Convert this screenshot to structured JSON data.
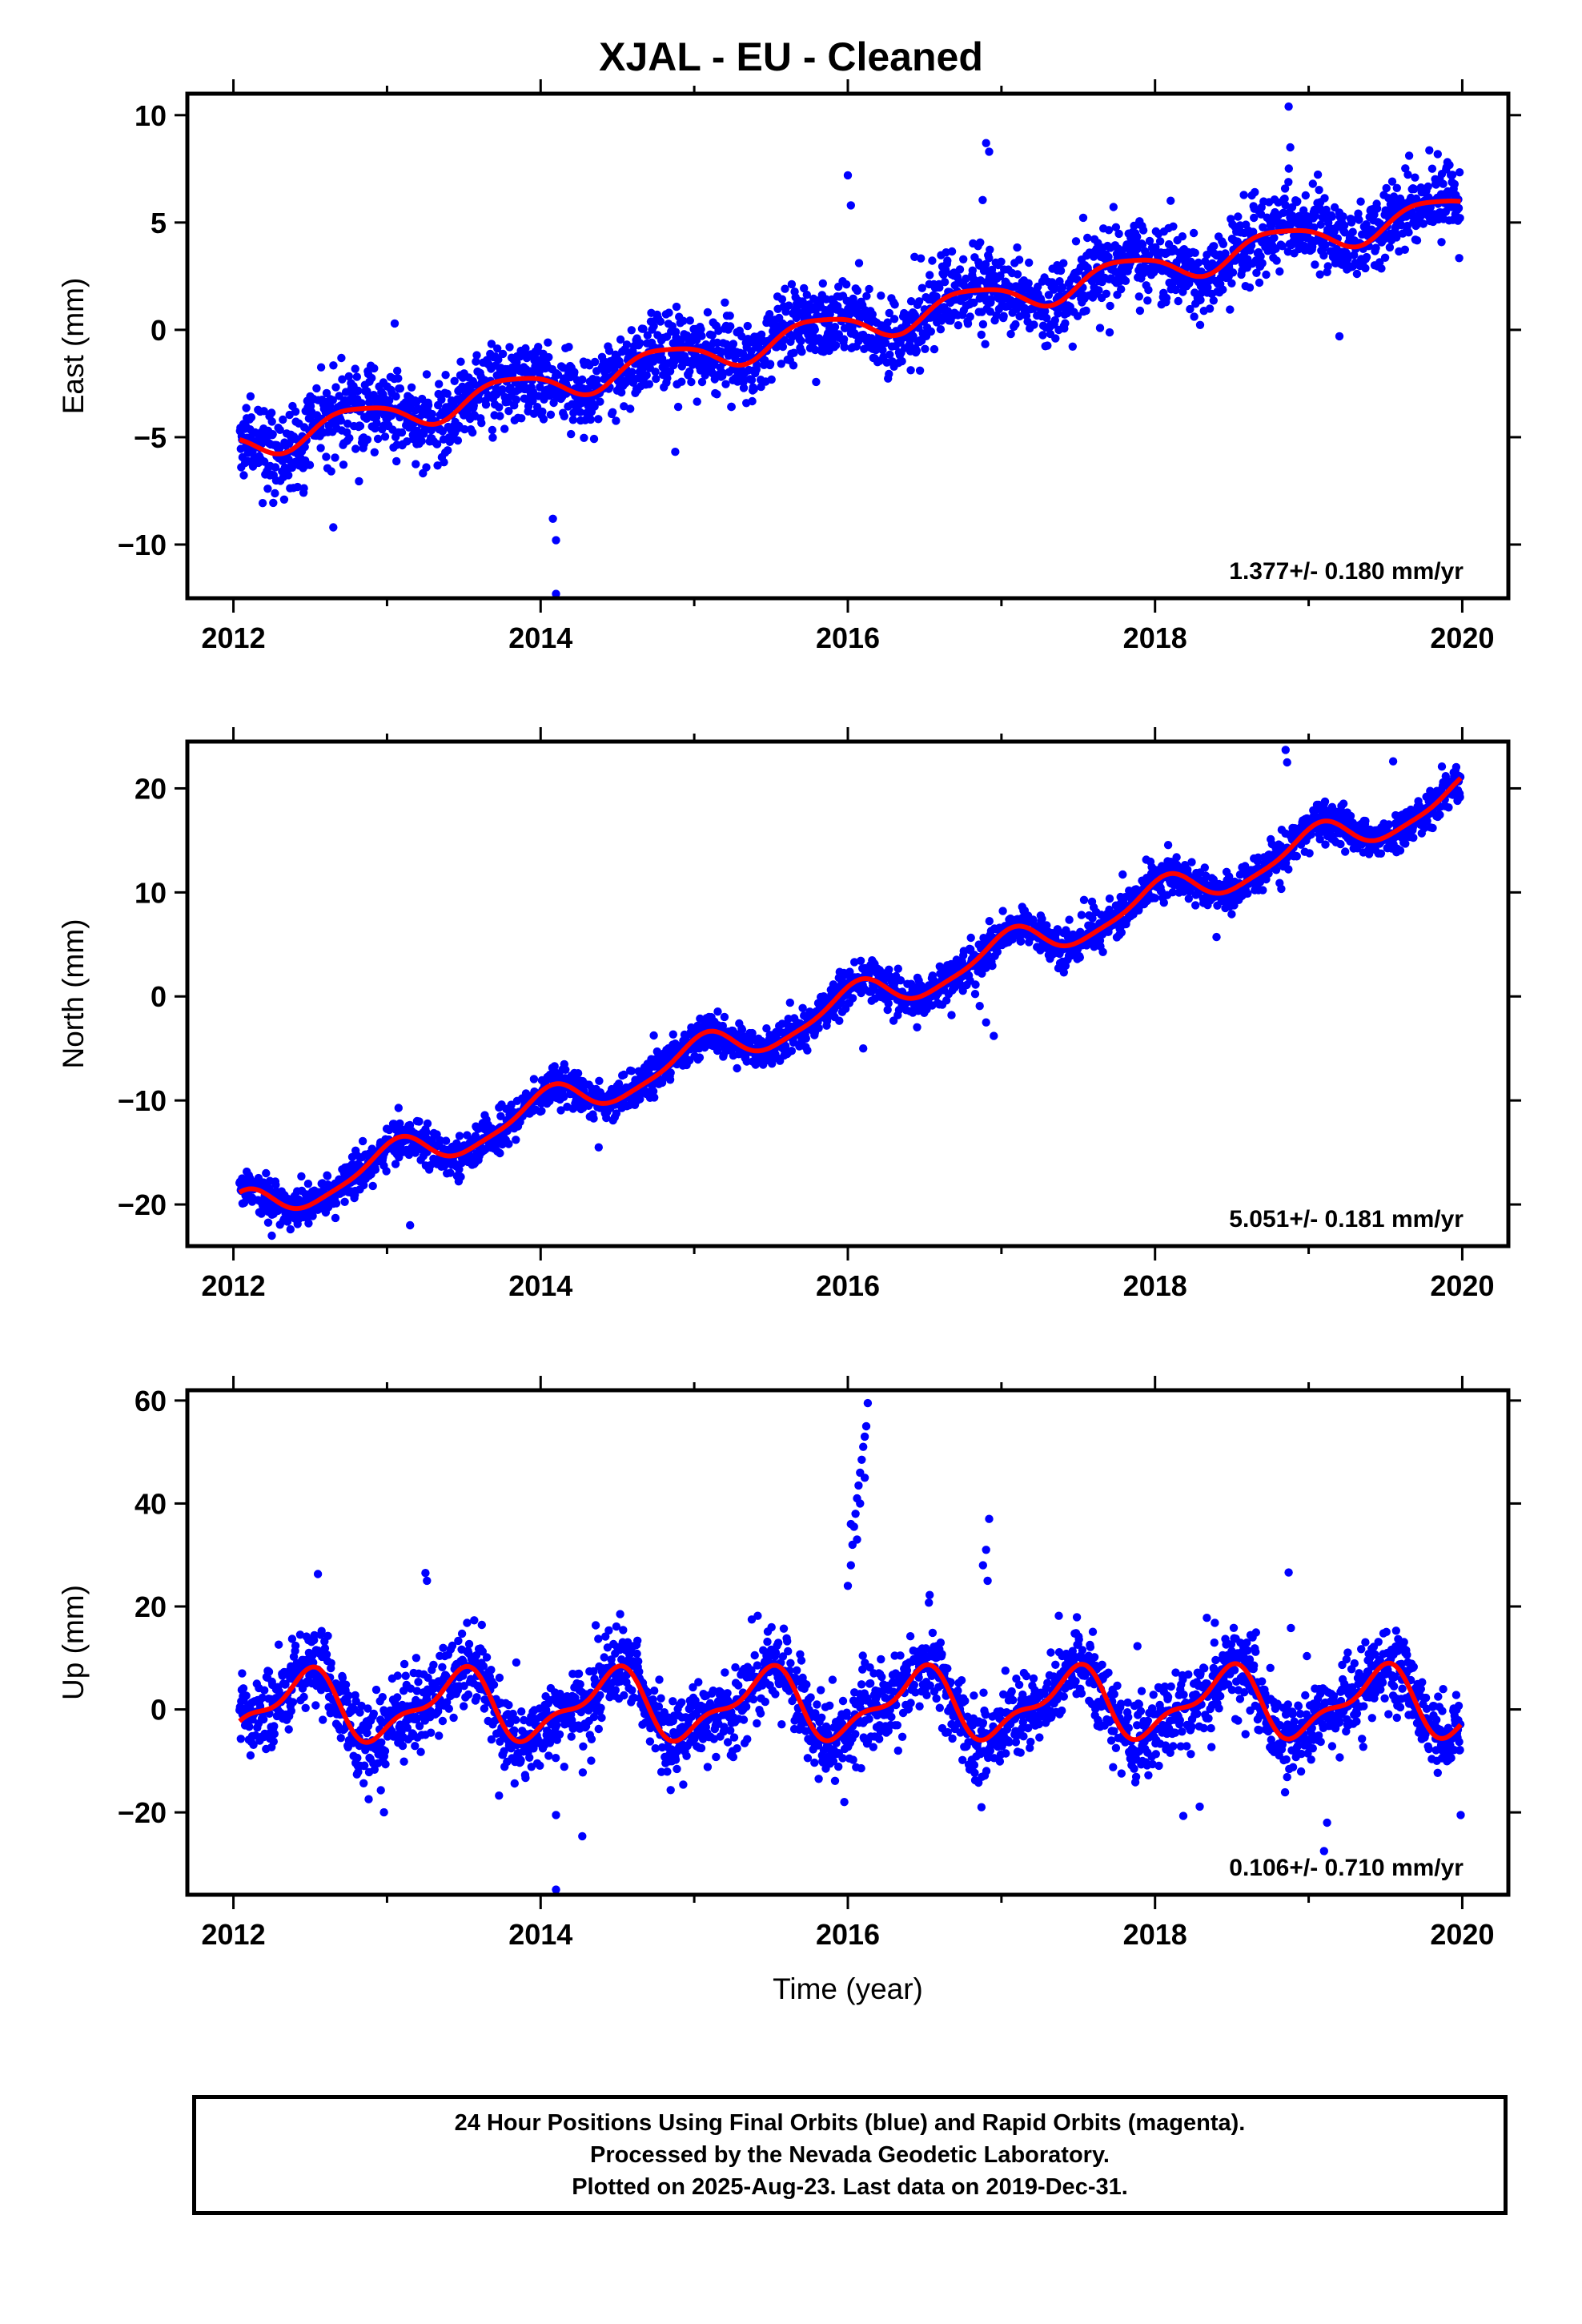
{
  "title": "XJAL  - EU - Cleaned",
  "x_axis_label": "Time (year)",
  "footer": {
    "line1": "24 Hour Positions Using Final Orbits (blue) and Rapid Orbits (magenta).",
    "line2": "Processed by the Nevada Geodetic Laboratory.",
    "line3": "Plotted on 2025-Aug-23. Last data on 2019-Dec-31."
  },
  "colors": {
    "points": "#0000ff",
    "model": "#ff0000",
    "frame": "#000000"
  },
  "chart_data": [
    {
      "type": "scatter",
      "ylabel": "East (mm)",
      "rate": "1.377+/- 0.180 mm/yr",
      "xlim": [
        2011.7,
        2020.3
      ],
      "ylim": [
        -12.5,
        11
      ],
      "xticks": [
        2012,
        2014,
        2016,
        2018,
        2020
      ],
      "yticks": [
        -10,
        -5,
        0,
        5,
        10
      ],
      "ytick_labels": [
        "−10",
        "−5",
        "0",
        "5",
        "10"
      ],
      "data_span": [
        2012.04,
        2019.99
      ],
      "trend": {
        "slope": 1.377,
        "intercept": -5.3,
        "t0": 2012.04
      },
      "seasonal": {
        "annual_amp": 0.7,
        "annual_phase": 2.8,
        "semiannual_amp": 0.15,
        "semiannual_phase": 0.5
      },
      "scatter_sd": 0.9,
      "outliers": [
        {
          "x": 2013.05,
          "y": 0.3
        },
        {
          "x": 2014.1,
          "y": -12.3
        },
        {
          "x": 2014.1,
          "y": -9.8
        },
        {
          "x": 2014.08,
          "y": -8.8
        },
        {
          "x": 2016.0,
          "y": 7.2
        },
        {
          "x": 2016.02,
          "y": 5.8
        },
        {
          "x": 2016.9,
          "y": 8.7
        },
        {
          "x": 2016.92,
          "y": 8.3
        },
        {
          "x": 2018.87,
          "y": 10.4
        },
        {
          "x": 2018.88,
          "y": 8.5
        },
        {
          "x": 2012.65,
          "y": -9.2
        },
        {
          "x": 2019.2,
          "y": -0.3
        }
      ]
    },
    {
      "type": "scatter",
      "ylabel": "North (mm)",
      "rate": "5.051+/- 0.181 mm/yr",
      "xlim": [
        2011.7,
        2020.3
      ],
      "ylim": [
        -24,
        24.5
      ],
      "xticks": [
        2012,
        2014,
        2016,
        2018,
        2020
      ],
      "yticks": [
        -20,
        -10,
        0,
        10,
        20
      ],
      "ytick_labels": [
        "−20",
        "−10",
        "0",
        "10",
        "20"
      ],
      "data_span": [
        2012.04,
        2019.99
      ],
      "trend": {
        "slope": 5.051,
        "intercept": -20.8,
        "t0": 2012.04
      },
      "seasonal": {
        "annual_amp": 1.7,
        "annual_phase": 1.3,
        "semiannual_amp": 0.4,
        "semiannual_phase": 0.2
      },
      "scatter_sd": 0.9,
      "outliers": [
        {
          "x": 2013.15,
          "y": -22.0
        },
        {
          "x": 2016.95,
          "y": -3.8
        },
        {
          "x": 2016.9,
          "y": -2.5
        },
        {
          "x": 2018.85,
          "y": 23.7
        },
        {
          "x": 2018.86,
          "y": 22.5
        },
        {
          "x": 2019.55,
          "y": 22.6
        },
        {
          "x": 2012.25,
          "y": -23.0
        },
        {
          "x": 2016.1,
          "y": -5.0
        }
      ]
    },
    {
      "type": "scatter",
      "ylabel": "Up (mm)",
      "rate": "0.106+/- 0.710 mm/yr",
      "xlim": [
        2011.7,
        2020.3
      ],
      "ylim": [
        -36,
        62
      ],
      "xticks": [
        2012,
        2014,
        2016,
        2018,
        2020
      ],
      "yticks": [
        -20,
        0,
        20,
        40,
        60
      ],
      "ytick_labels": [
        "−20",
        "0",
        "20",
        "40",
        "60"
      ],
      "data_span": [
        2012.04,
        2019.99
      ],
      "trend": {
        "slope": 0.106,
        "intercept": 0.5,
        "t0": 2012.04
      },
      "seasonal": {
        "annual_amp": 6.0,
        "annual_phase": -1.3,
        "semiannual_amp": 2.5,
        "semiannual_phase": 0.8
      },
      "scatter_sd": 3.8,
      "outliers": [
        {
          "x": 2012.55,
          "y": 26.3
        },
        {
          "x": 2013.25,
          "y": 26.5
        },
        {
          "x": 2013.26,
          "y": 25.0
        },
        {
          "x": 2012.98,
          "y": -20.0
        },
        {
          "x": 2014.1,
          "y": -35.0
        },
        {
          "x": 2014.1,
          "y": -20.5
        },
        {
          "x": 2016.0,
          "y": 24.0
        },
        {
          "x": 2016.02,
          "y": 28.0
        },
        {
          "x": 2016.03,
          "y": 32.0
        },
        {
          "x": 2016.04,
          "y": 35.5
        },
        {
          "x": 2016.05,
          "y": 38.0
        },
        {
          "x": 2016.06,
          "y": 41.0
        },
        {
          "x": 2016.07,
          "y": 43.5
        },
        {
          "x": 2016.08,
          "y": 46.0
        },
        {
          "x": 2016.09,
          "y": 48.5
        },
        {
          "x": 2016.1,
          "y": 51.0
        },
        {
          "x": 2016.11,
          "y": 53.0
        },
        {
          "x": 2016.12,
          "y": 55.0
        },
        {
          "x": 2016.13,
          "y": 59.5
        },
        {
          "x": 2016.02,
          "y": 36.0
        },
        {
          "x": 2016.06,
          "y": 33.0
        },
        {
          "x": 2016.08,
          "y": 40.0
        },
        {
          "x": 2016.11,
          "y": 45.0
        },
        {
          "x": 2016.92,
          "y": 37.0
        },
        {
          "x": 2016.9,
          "y": 31.0
        },
        {
          "x": 2016.88,
          "y": 28.0
        },
        {
          "x": 2016.91,
          "y": 25.0
        },
        {
          "x": 2016.87,
          "y": -19.0
        },
        {
          "x": 2018.87,
          "y": 26.6
        },
        {
          "x": 2019.1,
          "y": -27.5
        },
        {
          "x": 2019.12,
          "y": -22.0
        },
        {
          "x": 2019.99,
          "y": -20.5
        }
      ]
    }
  ]
}
